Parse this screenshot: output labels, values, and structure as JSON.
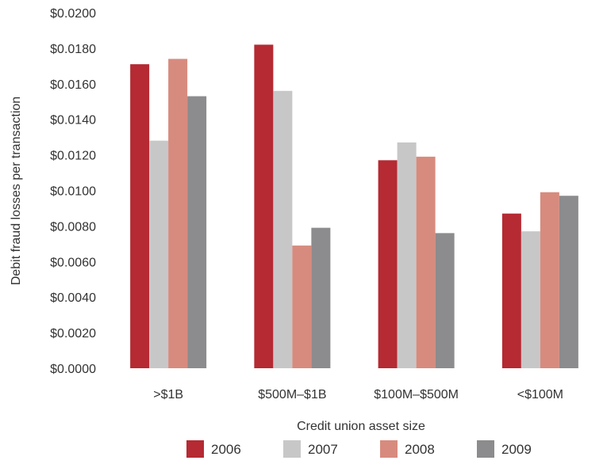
{
  "chart_data": {
    "type": "bar",
    "title": "",
    "xlabel": "Credit union asset size",
    "ylabel": "Debit fraud losses per transaction",
    "categories": [
      ">$1B",
      "$500M–$1B",
      "$100M–$500M",
      "<$100M"
    ],
    "series": [
      {
        "name": "2006",
        "color": "#b52a33",
        "values": [
          0.0171,
          0.0182,
          0.0117,
          0.0087
        ]
      },
      {
        "name": "2007",
        "color": "#c8c7c8",
        "values": [
          0.0128,
          0.0156,
          0.0127,
          0.0077
        ]
      },
      {
        "name": "2008",
        "color": "#d78b7e",
        "values": [
          0.0174,
          0.0069,
          0.0119,
          0.0099
        ]
      },
      {
        "name": "2009",
        "color": "#8c8b8d",
        "values": [
          0.0153,
          0.0079,
          0.0076,
          0.0097
        ]
      }
    ],
    "ylim": [
      0,
      0.02
    ],
    "yticks": [
      "$0.0000",
      "$0.0020",
      "$0.0040",
      "$0.0060",
      "$0.0080",
      "$0.0100",
      "$0.0120",
      "$0.0140",
      "$0.0160",
      "$0.0180",
      "$0.0200"
    ],
    "grid": false,
    "legend_position": "bottom"
  }
}
